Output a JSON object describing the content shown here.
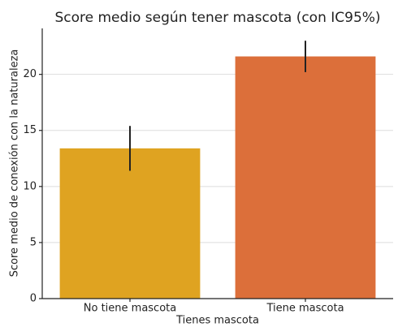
{
  "chart_data": {
    "type": "bar",
    "title": "Score medio según tener mascota (con IC95%)",
    "xlabel": "Tienes mascota",
    "ylabel": "Score medio de conexión con la naturaleza",
    "categories": [
      "No tiene mascota",
      "Tiene mascota"
    ],
    "values": [
      13.4,
      21.6
    ],
    "errors": [
      2.0,
      1.4
    ],
    "colors": [
      "#dfa321",
      "#dc6f3a"
    ],
    "ylim": [
      0,
      24.1
    ],
    "yticks": [
      0,
      5,
      10,
      15,
      20
    ],
    "grid": true
  }
}
